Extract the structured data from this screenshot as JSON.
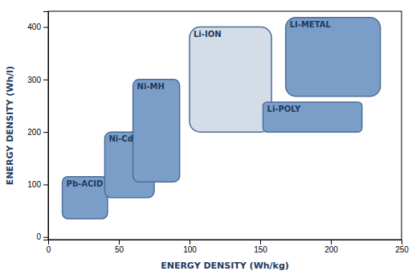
{
  "chart_data": {
    "type": "range",
    "xlabel": "ENERGY DENSITY (Wh/kg)",
    "ylabel": "ENERGY DENSITY (Wh/l)",
    "color": "#4a6f9a",
    "series": [
      {
        "name": "Pb-ACID",
        "x": [
          10,
          42
        ],
        "values": [
          35,
          115
        ],
        "color": "#7b9ec8"
      },
      {
        "name": "Ni-Cd",
        "x": [
          40,
          75
        ],
        "values": [
          75,
          200
        ],
        "color": "#7b9ec8"
      },
      {
        "name": "Ni-MH",
        "x": [
          60,
          93
        ],
        "values": [
          105,
          300
        ],
        "color": "#7b9ec8"
      },
      {
        "name": "Li-ION",
        "x": [
          100,
          158
        ],
        "values": [
          200,
          400
        ],
        "color": "#d4dce8"
      },
      {
        "name": "Li-POLY",
        "x": [
          152,
          222
        ],
        "values": [
          200,
          257
        ],
        "color": "#7b9ec8"
      },
      {
        "name": "LI-METAL",
        "x": [
          168,
          235
        ],
        "values": [
          268,
          418
        ],
        "color": "#7b9ec8"
      }
    ],
    "xlim": [
      0,
      250
    ],
    "ylim": [
      -5,
      430
    ],
    "xticks": [
      0,
      50,
      100,
      150,
      200,
      250
    ],
    "yticks": [
      0,
      100,
      200,
      300,
      400
    ],
    "grid": false
  }
}
